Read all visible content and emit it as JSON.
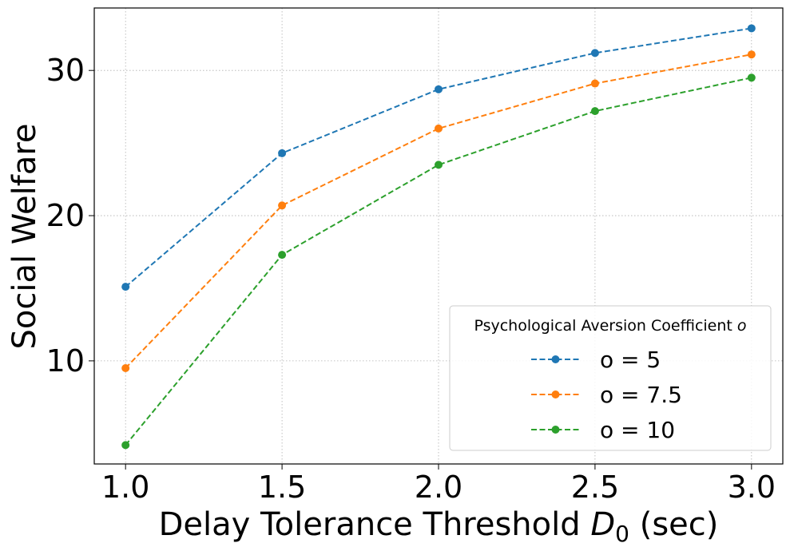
{
  "chart_data": {
    "type": "line",
    "xlabel_main": "Delay Tolerance Threshold ",
    "xlabel_var": "D",
    "xlabel_sub": "0",
    "xlabel_unit": " (sec)",
    "ylabel": "Social Welfare",
    "x": [
      1.0,
      1.5,
      2.0,
      2.5,
      3.0
    ],
    "xticks": [
      "1.0",
      "1.5",
      "2.0",
      "2.5",
      "3.0"
    ],
    "yticks": [
      "10",
      "20",
      "30"
    ],
    "xlim": [
      0.9,
      3.1
    ],
    "ylim": [
      2.9,
      34.3
    ],
    "grid": true,
    "legend": {
      "placement": "lower-right",
      "title": "Psychological Aversion Coefficient ",
      "title_var": "o"
    },
    "series": [
      {
        "name": "o = 5",
        "color": "#1f77b4",
        "values": [
          15.1,
          24.3,
          28.7,
          31.2,
          32.9
        ]
      },
      {
        "name": "o = 7.5",
        "color": "#ff7f0e",
        "values": [
          9.5,
          20.7,
          26.0,
          29.1,
          31.1
        ]
      },
      {
        "name": "o = 10",
        "color": "#2ca02c",
        "values": [
          4.2,
          17.3,
          23.5,
          27.2,
          29.5
        ]
      }
    ]
  }
}
